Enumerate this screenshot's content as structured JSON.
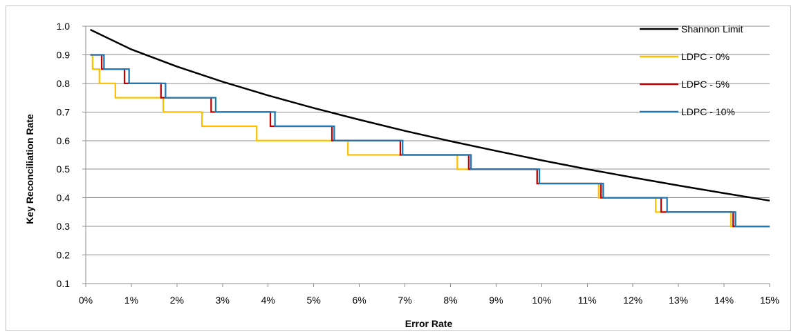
{
  "chart_data": {
    "type": "line",
    "xlabel": "Error Rate",
    "ylabel": "Key Reconciliation Rate",
    "xlim": [
      0,
      15
    ],
    "ylim": [
      0.1,
      1.0
    ],
    "x_ticks": [
      0,
      1,
      2,
      3,
      4,
      5,
      6,
      7,
      8,
      9,
      10,
      11,
      12,
      13,
      14,
      15
    ],
    "x_tick_labels": [
      "0%",
      "1%",
      "2%",
      "3%",
      "4%",
      "5%",
      "6%",
      "7%",
      "8%",
      "9%",
      "10%",
      "11%",
      "12%",
      "13%",
      "14%",
      "15%"
    ],
    "y_ticks": [
      0.1,
      0.2,
      0.3,
      0.4,
      0.5,
      0.6,
      0.7,
      0.8,
      0.9,
      1.0
    ],
    "y_tick_labels": [
      "0.1",
      "0.2",
      "0.3",
      "0.4",
      "0.5",
      "0.6",
      "0.7",
      "0.8",
      "0.9",
      "1.0"
    ],
    "grid": "horizontal",
    "legend_position": "top-right",
    "series": [
      {
        "name": "Shannon Limit",
        "color": "#000000",
        "kind": "smooth",
        "x": [
          0.1,
          1,
          2,
          3,
          4,
          5,
          6,
          7,
          8,
          9,
          10,
          11,
          12,
          13,
          14,
          15
        ],
        "y": [
          0.988,
          0.919,
          0.859,
          0.806,
          0.758,
          0.714,
          0.673,
          0.634,
          0.598,
          0.564,
          0.531,
          0.5,
          0.471,
          0.443,
          0.416,
          0.39
        ]
      },
      {
        "name": "LDPC - 0%",
        "color": "#FFC000",
        "kind": "step",
        "x": [
          0.1,
          0.15,
          0.15,
          0.3,
          0.3,
          0.65,
          0.65,
          1.7,
          1.7,
          2.55,
          2.55,
          3.75,
          3.75,
          5.75,
          5.75,
          8.15,
          8.15,
          9.9,
          9.9,
          11.25,
          11.25,
          12.5,
          12.5,
          14.15,
          14.15,
          15
        ],
        "y": [
          0.9,
          0.9,
          0.85,
          0.85,
          0.8,
          0.8,
          0.75,
          0.75,
          0.7,
          0.7,
          0.65,
          0.65,
          0.6,
          0.6,
          0.55,
          0.55,
          0.5,
          0.5,
          0.45,
          0.45,
          0.4,
          0.4,
          0.35,
          0.35,
          0.3,
          0.3
        ]
      },
      {
        "name": "LDPC - 5%",
        "color": "#C00000",
        "kind": "step",
        "x": [
          0.1,
          0.35,
          0.35,
          0.85,
          0.85,
          1.65,
          1.65,
          2.75,
          2.75,
          4.05,
          4.05,
          5.4,
          5.4,
          6.9,
          6.9,
          8.4,
          8.4,
          9.9,
          9.9,
          11.3,
          11.3,
          12.62,
          12.62,
          14.2,
          14.2,
          15
        ],
        "y": [
          0.9,
          0.9,
          0.85,
          0.85,
          0.8,
          0.8,
          0.75,
          0.75,
          0.7,
          0.7,
          0.65,
          0.65,
          0.6,
          0.6,
          0.55,
          0.55,
          0.5,
          0.5,
          0.45,
          0.45,
          0.4,
          0.4,
          0.35,
          0.35,
          0.3,
          0.3
        ]
      },
      {
        "name": "LDPC - 10%",
        "color": "#1F77B4",
        "kind": "step",
        "x": [
          0.1,
          0.4,
          0.4,
          0.95,
          0.95,
          1.75,
          1.75,
          2.85,
          2.85,
          4.15,
          4.15,
          5.45,
          5.45,
          6.95,
          6.95,
          8.45,
          8.45,
          9.95,
          9.95,
          11.35,
          11.35,
          12.75,
          12.75,
          14.25,
          14.25,
          15
        ],
        "y": [
          0.9,
          0.9,
          0.85,
          0.85,
          0.8,
          0.8,
          0.75,
          0.75,
          0.7,
          0.7,
          0.65,
          0.65,
          0.6,
          0.6,
          0.55,
          0.55,
          0.5,
          0.5,
          0.45,
          0.45,
          0.4,
          0.4,
          0.35,
          0.35,
          0.3,
          0.3
        ]
      }
    ]
  }
}
